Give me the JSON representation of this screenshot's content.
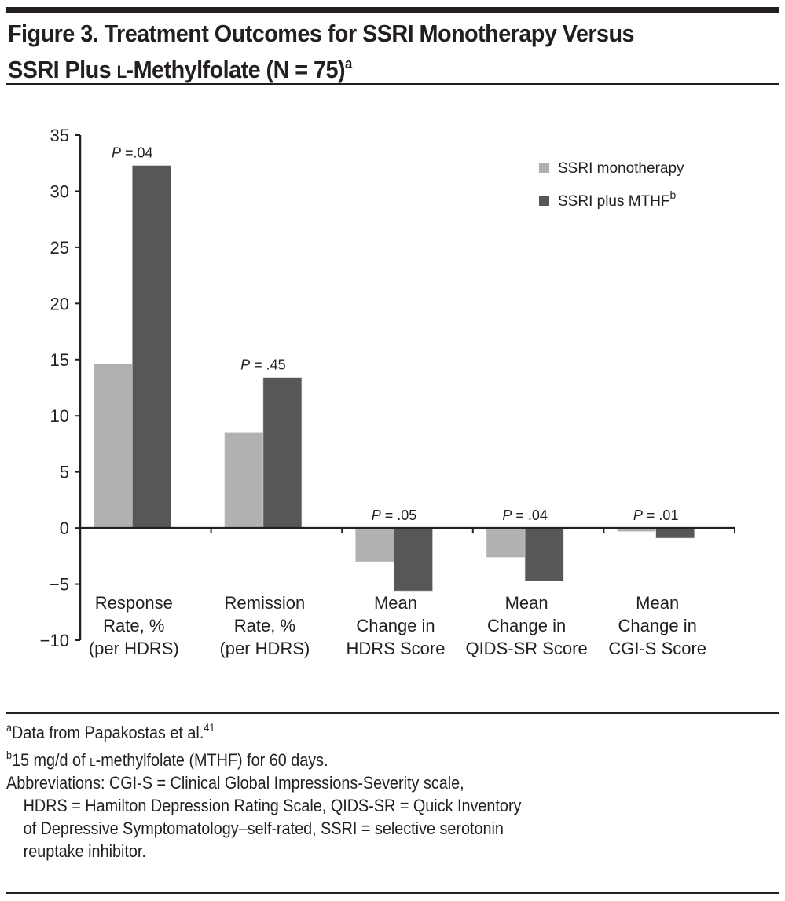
{
  "figure": {
    "title_line1": "Figure 3. Treatment Outcomes for SSRI Monotherapy Versus",
    "title_line2_pre": "SSRI Plus ",
    "title_line2_smallcaps": "l",
    "title_line2_post": "-Methylfolate (N = 75)",
    "title_sup": "a"
  },
  "chart_data": {
    "type": "bar",
    "title": "Treatment Outcomes for SSRI Monotherapy Versus SSRI Plus L-Methylfolate (N = 75)",
    "xlabel": "",
    "ylabel": "",
    "ylim": [
      -10,
      35
    ],
    "yticks": [
      35,
      30,
      25,
      20,
      15,
      10,
      5,
      0,
      -5,
      -10
    ],
    "ytick_labels": [
      "35",
      "30",
      "25",
      "20",
      "15",
      "10",
      "5",
      "0",
      "−5",
      "−10"
    ],
    "grid": false,
    "legend_position": "top-right",
    "categories": [
      [
        "Response",
        "Rate, %",
        "(per HDRS)"
      ],
      [
        "Remission",
        "Rate, %",
        "(per HDRS)"
      ],
      [
        "Mean",
        "Change in",
        "HDRS Score"
      ],
      [
        "Mean",
        "Change in",
        "QIDS-SR Score"
      ],
      [
        "Mean",
        "Change in",
        "CGI-S Score"
      ]
    ],
    "series": [
      {
        "name": "SSRI monotherapy",
        "legend_sup": "",
        "color": "#b1b1b1",
        "values": [
          14.6,
          8.5,
          -3.0,
          -2.6,
          -0.3
        ]
      },
      {
        "name": "SSRI plus MTHF",
        "legend_sup": "b",
        "color": "#575757",
        "values": [
          32.3,
          13.4,
          -5.6,
          -4.7,
          -0.9
        ]
      }
    ],
    "annotations": [
      "P =.04",
      "P = .45",
      "P = .05",
      "P = .04",
      "P = .01"
    ]
  },
  "notes": {
    "a_sup": "a",
    "a_text": "Data from Papakostas et al.",
    "a_ref": "41",
    "b_sup": "b",
    "b_text_pre": "15 mg/d of ",
    "b_text_smallcaps": "l",
    "b_text_post": "-methylfolate (MTHF) for 60 days.",
    "abbrev_line1": "Abbreviations: CGI-S = Clinical Global Impressions-Severity scale,",
    "abbrev_line2": "HDRS = Hamilton Depression Rating Scale, QIDS-SR = Quick Inventory",
    "abbrev_line3": "of Depressive Symptomatology–self-rated, SSRI = selective serotonin",
    "abbrev_line4": "reuptake inhibitor."
  }
}
